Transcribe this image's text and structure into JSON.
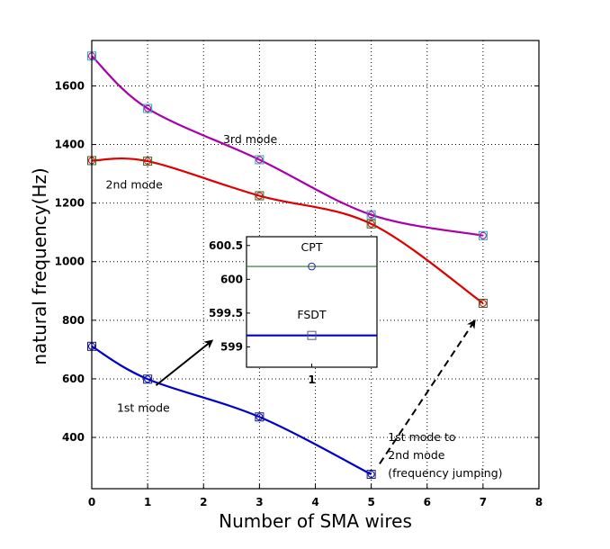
{
  "chart_data": {
    "type": "line",
    "title": "",
    "xlabel": "Number of SMA wires",
    "ylabel": "natural frequency(Hz)",
    "xlim": [
      0,
      8
    ],
    "ylim": [
      225,
      1755
    ],
    "xticks": [
      0,
      1,
      2,
      3,
      4,
      5,
      6,
      7,
      8
    ],
    "yticks": [
      400,
      600,
      800,
      1000,
      1200,
      1400,
      1600
    ],
    "grid": true,
    "series": [
      {
        "name": "1st mode",
        "color": "#0000cc",
        "x": [
          0,
          1,
          3,
          5
        ],
        "y": [
          711,
          599,
          470,
          274
        ],
        "marker": "square+circle"
      },
      {
        "name": "2nd mode",
        "color": "#dd0000",
        "x": [
          0,
          1,
          3,
          5,
          7
        ],
        "y": [
          1345,
          1343,
          1225,
          1129,
          858
        ],
        "marker": "square+circle"
      },
      {
        "name": "3rd mode",
        "color": "#aa00aa",
        "x": [
          0,
          1,
          3,
          5,
          7
        ],
        "y": [
          1702,
          1523,
          1348,
          1160,
          1089
        ],
        "marker": "square+circle"
      }
    ],
    "marker_colors": {
      "1st mode": "#1a1a6e",
      "2nd mode": "#2e6b1f",
      "3rd mode": "#2aa7b8"
    },
    "annotations": [
      {
        "text": "3rd mode",
        "x": 2.35,
        "y": 1404
      },
      {
        "text": "2nd mode",
        "x": 0.25,
        "y": 1250
      },
      {
        "text": "1st mode",
        "x": 0.45,
        "y": 487
      },
      {
        "text": [
          "1st mode to",
          "2nd mode",
          "(frequency jumping)"
        ],
        "x": 5.3,
        "y": 388
      }
    ],
    "arrows": [
      {
        "from": [
          1.15,
          578
        ],
        "to": [
          2.15,
          730
        ],
        "style": "solid"
      },
      {
        "from": [
          5.15,
          310
        ],
        "to": [
          6.85,
          798
        ],
        "style": "dashed"
      }
    ],
    "inset": {
      "xlim": [
        0,
        2
      ],
      "ylim": [
        598.7,
        600.63
      ],
      "xticks": [
        1
      ],
      "yticks": [
        599,
        599.5,
        600,
        600.5
      ],
      "ytick_labels": [
        "599",
        "599.5",
        "600",
        "600.5"
      ],
      "series": [
        {
          "name": "CPT",
          "value": 600.19,
          "line_color": "#1f7a1f",
          "marker": "circle",
          "marker_color": "#2020aa"
        },
        {
          "name": "FSDT",
          "value": 599.17,
          "line_color": "#0000cc",
          "marker": "square",
          "marker_color": "#555577"
        }
      ],
      "labels": [
        {
          "text": "CPT",
          "value": 600.42
        },
        {
          "text": "FSDT",
          "value": 599.42
        }
      ]
    }
  }
}
